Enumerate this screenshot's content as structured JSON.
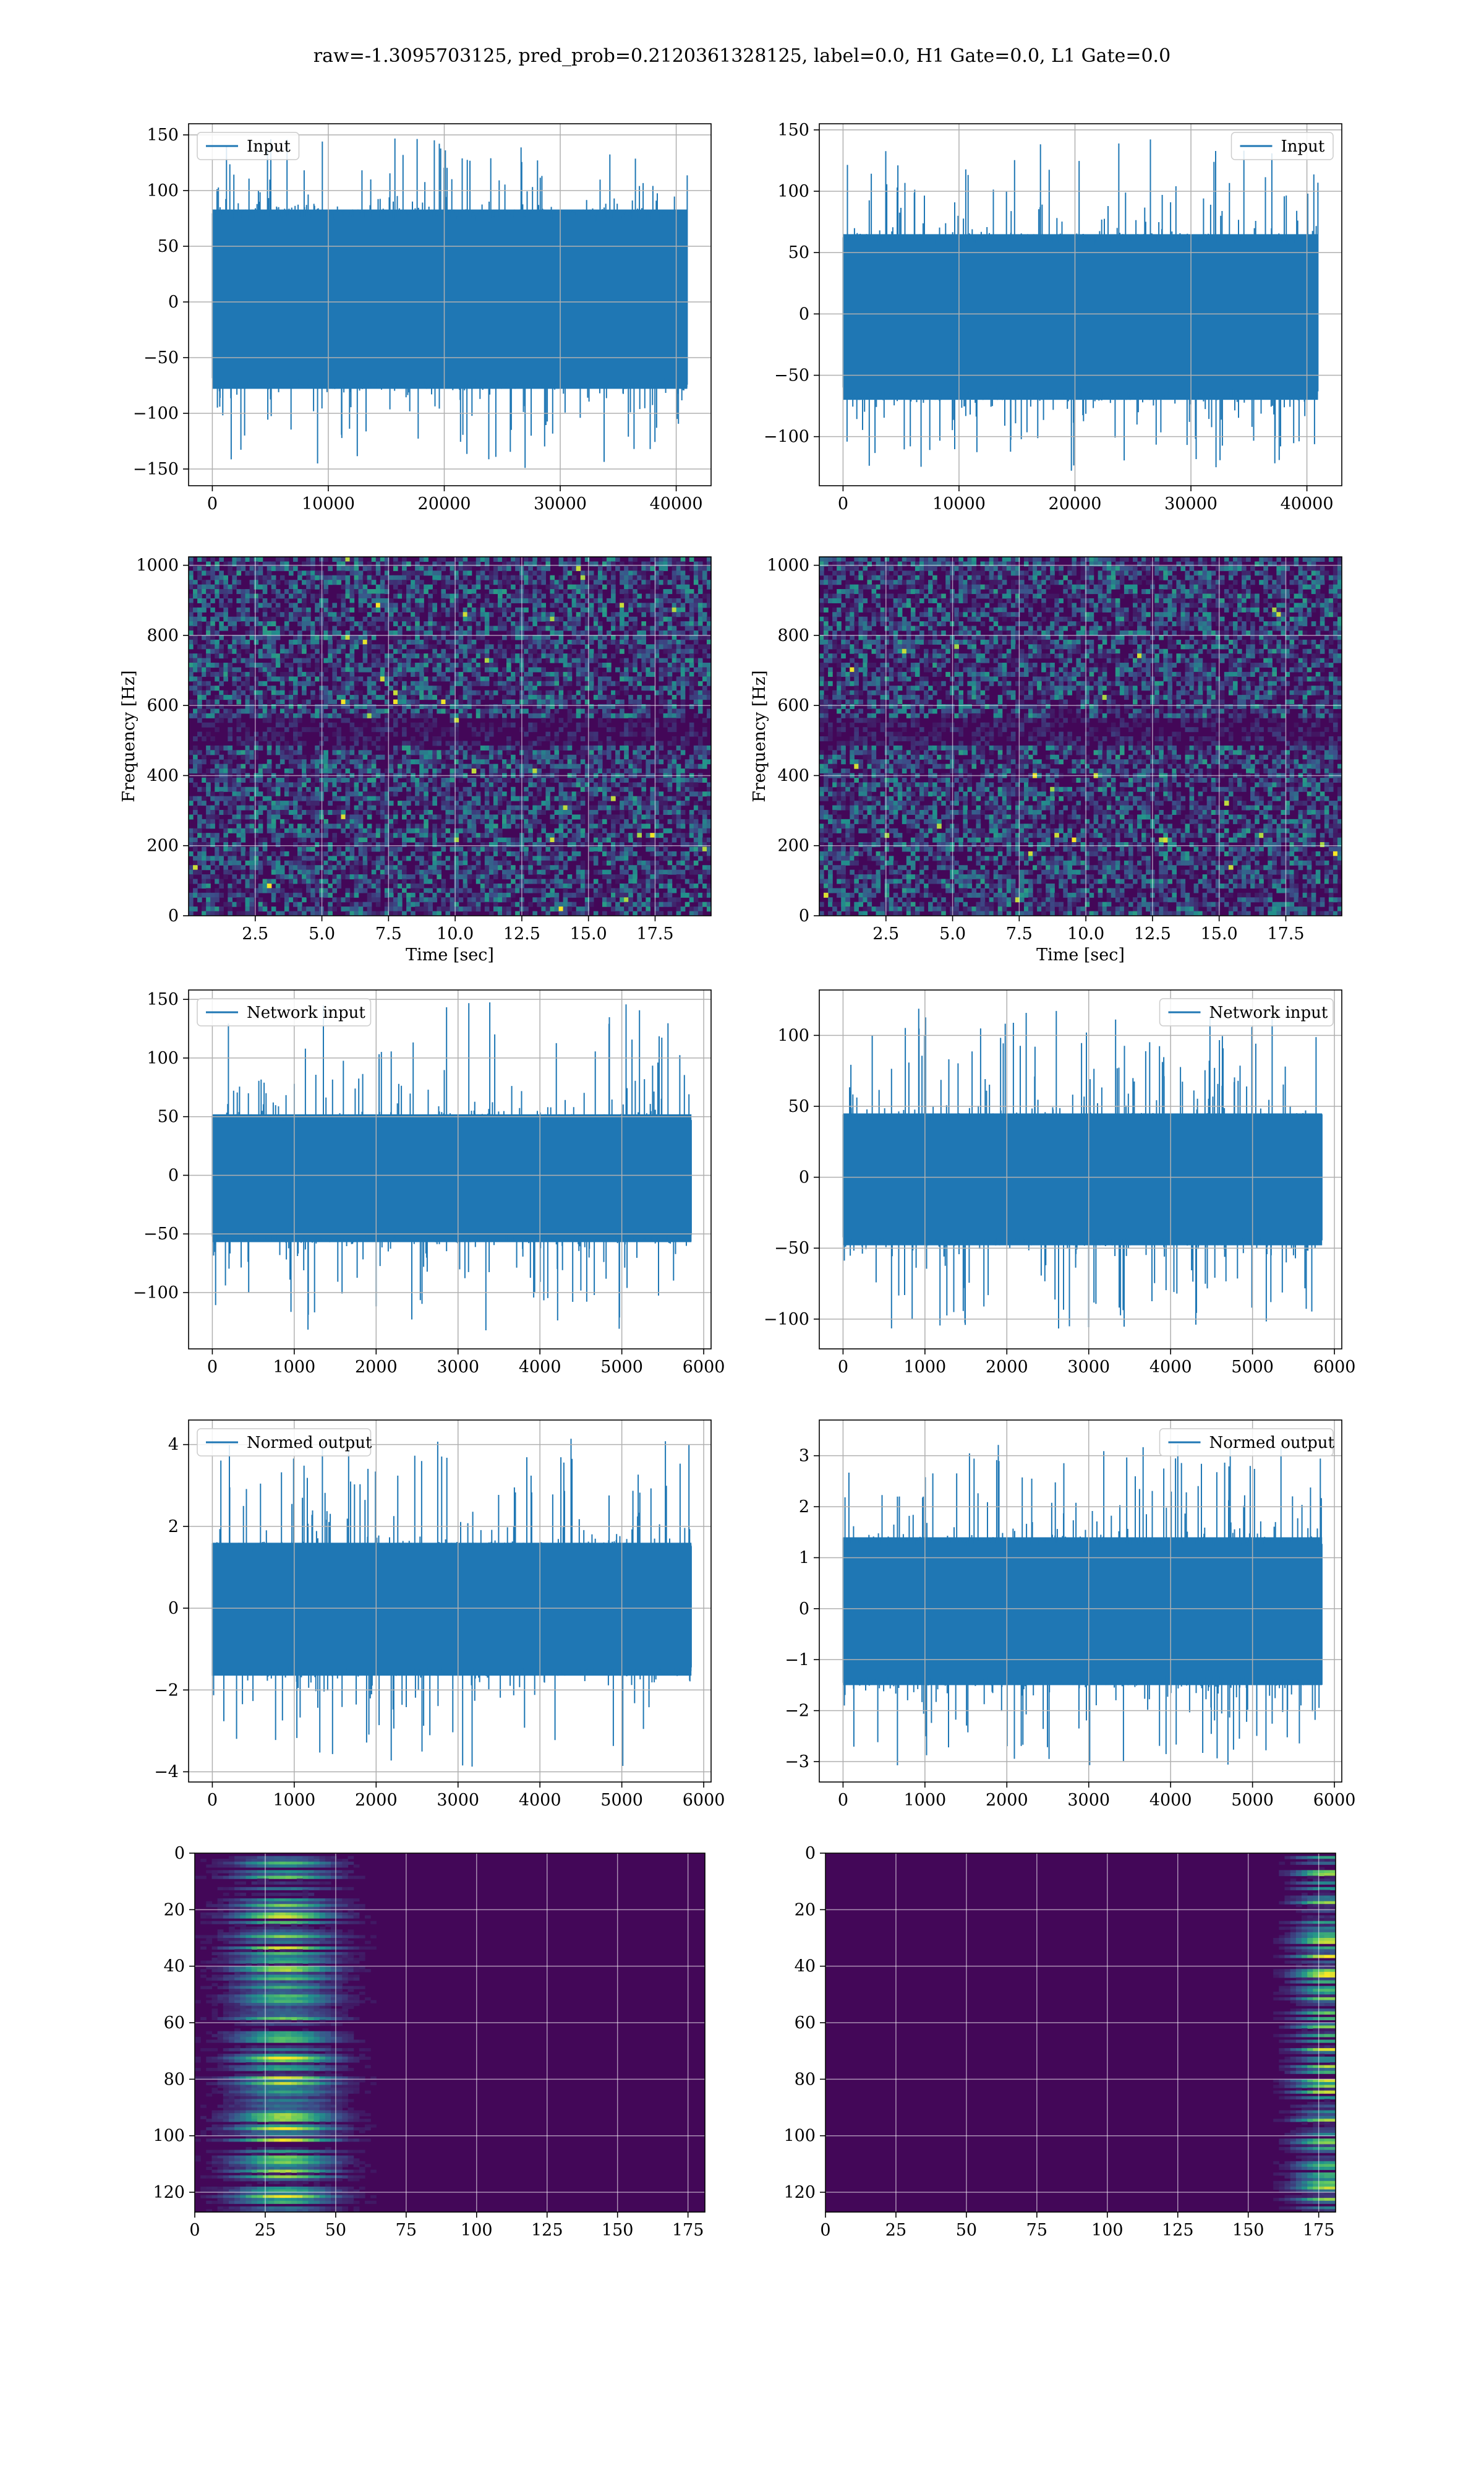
{
  "figure": {
    "title": "raw=-1.3095703125, pred_prob=0.2120361328125, label=0.0, H1 Gate=0.0, L1 Gate=0.0",
    "line_color": "#1f77b4"
  },
  "chart_data": [
    {
      "id": "p1",
      "type": "line",
      "series": [
        {
          "name": "Input"
        }
      ],
      "legend": "upper left",
      "grid": true,
      "xlim": [
        -2048,
        43008
      ],
      "ylim": [
        -165,
        160
      ],
      "xticks": [
        0,
        10000,
        20000,
        30000,
        40000
      ],
      "xticklabels": [
        "0",
        "10000",
        "20000",
        "30000",
        "40000"
      ],
      "yticks": [
        -150,
        -100,
        -50,
        0,
        50,
        100,
        150
      ],
      "yticklabels": [
        "−150",
        "−100",
        "−50",
        "0",
        "50",
        "100",
        "150"
      ],
      "xlabel": "",
      "ylabel": "",
      "n_points": 40960,
      "core_range": [
        -78,
        83
      ],
      "spike_max": 148,
      "spike_min": -152
    },
    {
      "id": "p2",
      "type": "line",
      "series": [
        {
          "name": "Input"
        }
      ],
      "legend": "upper right",
      "grid": true,
      "xlim": [
        -2048,
        43008
      ],
      "ylim": [
        -140,
        155
      ],
      "xticks": [
        0,
        10000,
        20000,
        30000,
        40000
      ],
      "xticklabels": [
        "0",
        "10000",
        "20000",
        "30000",
        "40000"
      ],
      "yticks": [
        -100,
        -50,
        0,
        50,
        100,
        150
      ],
      "yticklabels": [
        "−100",
        "−50",
        "0",
        "50",
        "100",
        "150"
      ],
      "xlabel": "",
      "ylabel": "",
      "n_points": 40960,
      "core_range": [
        -70,
        65
      ],
      "spike_max": 143,
      "spike_min": -128
    },
    {
      "id": "p3",
      "type": "heatmap",
      "grid": true,
      "xlim": [
        0,
        19.6
      ],
      "ylim": [
        0,
        1024
      ],
      "xticks": [
        2.5,
        5,
        7.5,
        10,
        12.5,
        15,
        17.5
      ],
      "xticklabels": [
        "2.5",
        "5.0",
        "7.5",
        "10.0",
        "12.5",
        "15.0",
        "17.5"
      ],
      "yticks": [
        0,
        200,
        400,
        600,
        800,
        1000
      ],
      "yticklabels": [
        "0",
        "200",
        "400",
        "600",
        "800",
        "1000"
      ],
      "xlabel": "Time [sec]",
      "ylabel": "Frequency [Hz]"
    },
    {
      "id": "p4",
      "type": "heatmap",
      "grid": true,
      "xlim": [
        0,
        19.6
      ],
      "ylim": [
        0,
        1024
      ],
      "xticks": [
        2.5,
        5,
        7.5,
        10,
        12.5,
        15,
        17.5
      ],
      "xticklabels": [
        "2.5",
        "5.0",
        "7.5",
        "10.0",
        "12.5",
        "15.0",
        "17.5"
      ],
      "yticks": [
        0,
        200,
        400,
        600,
        800,
        1000
      ],
      "yticklabels": [
        "0",
        "200",
        "400",
        "600",
        "800",
        "1000"
      ],
      "xlabel": "Time [sec]",
      "ylabel": "Frequency [Hz]"
    },
    {
      "id": "p5",
      "type": "line",
      "series": [
        {
          "name": "Network input"
        }
      ],
      "legend": "upper left",
      "grid": true,
      "xlim": [
        -290,
        6090
      ],
      "ylim": [
        -148,
        158
      ],
      "xticks": [
        0,
        1000,
        2000,
        3000,
        4000,
        5000,
        6000
      ],
      "xticklabels": [
        "0",
        "1000",
        "2000",
        "3000",
        "4000",
        "5000",
        "6000"
      ],
      "yticks": [
        -100,
        -50,
        0,
        50,
        100,
        150
      ],
      "yticklabels": [
        "−100",
        "−50",
        "0",
        "50",
        "100",
        "150"
      ],
      "xlabel": "",
      "ylabel": "",
      "n_points": 5850,
      "core_range": [
        -57,
        52
      ],
      "spike_max": 150,
      "spike_min": -133
    },
    {
      "id": "p6",
      "type": "line",
      "series": [
        {
          "name": "Network input"
        }
      ],
      "legend": "upper right",
      "grid": true,
      "xlim": [
        -290,
        6090
      ],
      "ylim": [
        -121,
        132
      ],
      "xticks": [
        0,
        1000,
        2000,
        3000,
        4000,
        5000,
        6000
      ],
      "xticklabels": [
        "0",
        "1000",
        "2000",
        "3000",
        "4000",
        "5000",
        "6000"
      ],
      "yticks": [
        -100,
        -50,
        0,
        50,
        100
      ],
      "yticklabels": [
        "−100",
        "−50",
        "0",
        "50",
        "100"
      ],
      "xlabel": "",
      "ylabel": "",
      "n_points": 5850,
      "core_range": [
        -48,
        45
      ],
      "spike_max": 120,
      "spike_min": -108
    },
    {
      "id": "p7",
      "type": "line",
      "series": [
        {
          "name": "Normed output"
        }
      ],
      "legend": "upper left",
      "grid": true,
      "xlim": [
        -290,
        6090
      ],
      "ylim": [
        -4.25,
        4.6
      ],
      "xticks": [
        0,
        1000,
        2000,
        3000,
        4000,
        5000,
        6000
      ],
      "xticklabels": [
        "0",
        "1000",
        "2000",
        "3000",
        "4000",
        "5000",
        "6000"
      ],
      "yticks": [
        -4,
        -2,
        0,
        2,
        4
      ],
      "yticklabels": [
        "−4",
        "−2",
        "0",
        "2",
        "4"
      ],
      "xlabel": "",
      "ylabel": "",
      "n_points": 5850,
      "core_range": [
        -1.65,
        1.6
      ],
      "spike_max": 4.3,
      "spike_min": -3.9
    },
    {
      "id": "p8",
      "type": "line",
      "series": [
        {
          "name": "Normed output"
        }
      ],
      "legend": "upper right",
      "grid": true,
      "xlim": [
        -290,
        6090
      ],
      "ylim": [
        -3.4,
        3.7
      ],
      "xticks": [
        0,
        1000,
        2000,
        3000,
        4000,
        5000,
        6000
      ],
      "xticklabels": [
        "0",
        "1000",
        "2000",
        "3000",
        "4000",
        "5000",
        "6000"
      ],
      "yticks": [
        -3,
        -2,
        -1,
        0,
        1,
        2,
        3
      ],
      "yticklabels": [
        "−3",
        "−2",
        "−1",
        "0",
        "1",
        "2",
        "3"
      ],
      "xlabel": "",
      "ylabel": "",
      "n_points": 5850,
      "core_range": [
        -1.5,
        1.4
      ],
      "spike_max": 3.3,
      "spike_min": -3.1
    },
    {
      "id": "p9",
      "type": "heatmap",
      "grid": true,
      "invert_y": true,
      "xlim": [
        0,
        181
      ],
      "ylim": [
        0,
        127
      ],
      "xticks": [
        0,
        25,
        50,
        75,
        100,
        125,
        150,
        175
      ],
      "xticklabels": [
        "0",
        "25",
        "50",
        "75",
        "100",
        "125",
        "150",
        "175"
      ],
      "yticks": [
        0,
        20,
        40,
        60,
        80,
        100,
        120
      ],
      "yticklabels": [
        "0",
        "20",
        "40",
        "60",
        "80",
        "100",
        "120"
      ],
      "xlabel": "",
      "ylabel": "",
      "energy_focus": "left"
    },
    {
      "id": "p10",
      "type": "heatmap",
      "grid": true,
      "invert_y": true,
      "xlim": [
        0,
        181
      ],
      "ylim": [
        0,
        127
      ],
      "xticks": [
        0,
        25,
        50,
        75,
        100,
        125,
        150,
        175
      ],
      "xticklabels": [
        "0",
        "25",
        "50",
        "75",
        "100",
        "125",
        "150",
        "175"
      ],
      "yticks": [
        0,
        20,
        40,
        60,
        80,
        100,
        120
      ],
      "yticklabels": [
        "0",
        "20",
        "40",
        "60",
        "80",
        "100",
        "120"
      ],
      "xlabel": "",
      "ylabel": "",
      "energy_focus": "right"
    }
  ]
}
